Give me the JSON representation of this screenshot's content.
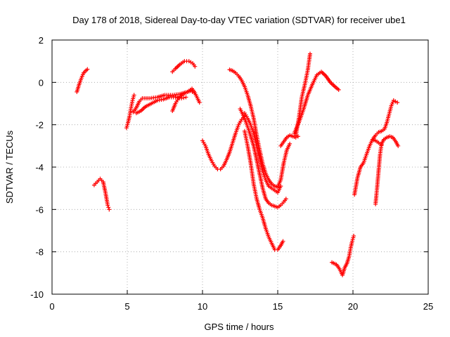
{
  "chart_data": {
    "type": "scatter",
    "title": "Day 178 of 2018, Sidereal Day-to-day VTEC variation (SDTVAR) for receiver ube1",
    "xlabel": "GPS time / hours",
    "ylabel": "SDTVAR / TECUs",
    "xlim": [
      0,
      25
    ],
    "ylim": [
      -10,
      2
    ],
    "xticks": [
      "0",
      "5",
      "10",
      "15",
      "20",
      "25"
    ],
    "yticks": [
      "-10",
      "-8",
      "-6",
      "-4",
      "-2",
      "0",
      "2"
    ],
    "grid": true,
    "marker": "+",
    "color": "#ff0000",
    "series": [
      {
        "values": [
          [
            1.65,
            -0.45
          ],
          [
            1.8,
            -0.1
          ],
          [
            1.95,
            0.2
          ],
          [
            2.1,
            0.45
          ],
          [
            2.35,
            0.62
          ]
        ]
      },
      {
        "values": [
          [
            2.8,
            -4.85
          ],
          [
            3.0,
            -4.7
          ],
          [
            3.2,
            -4.55
          ],
          [
            3.4,
            -4.7
          ],
          [
            3.55,
            -5.2
          ],
          [
            3.7,
            -5.8
          ],
          [
            3.8,
            -6.0
          ]
        ]
      },
      {
        "values": [
          [
            4.95,
            -2.15
          ],
          [
            5.05,
            -1.9
          ],
          [
            5.15,
            -1.6
          ],
          [
            5.25,
            -1.2
          ],
          [
            5.35,
            -0.85
          ],
          [
            5.45,
            -0.6
          ]
        ]
      },
      {
        "values": [
          [
            5.4,
            -1.4
          ],
          [
            5.6,
            -1.2
          ],
          [
            5.8,
            -0.9
          ],
          [
            6.0,
            -0.75
          ],
          [
            6.5,
            -0.75
          ],
          [
            7.0,
            -0.7
          ],
          [
            7.5,
            -0.6
          ],
          [
            8.0,
            -0.6
          ],
          [
            8.5,
            -0.55
          ],
          [
            9.0,
            -0.45
          ],
          [
            9.3,
            -0.3
          ],
          [
            9.5,
            -0.5
          ],
          [
            9.7,
            -0.8
          ],
          [
            9.8,
            -0.95
          ]
        ]
      },
      {
        "values": [
          [
            5.6,
            -1.45
          ],
          [
            5.9,
            -1.35
          ],
          [
            6.2,
            -1.15
          ],
          [
            6.6,
            -1.0
          ],
          [
            7.0,
            -0.85
          ],
          [
            7.4,
            -0.8
          ],
          [
            7.8,
            -0.7
          ],
          [
            8.2,
            -0.7
          ],
          [
            8.6,
            -0.75
          ],
          [
            8.9,
            -0.7
          ]
        ]
      },
      {
        "values": [
          [
            8.0,
            -1.35
          ],
          [
            8.2,
            -1.0
          ],
          [
            8.4,
            -0.75
          ],
          [
            8.7,
            -0.55
          ],
          [
            9.0,
            -0.45
          ],
          [
            9.2,
            -0.4
          ],
          [
            9.45,
            -0.5
          ]
        ]
      },
      {
        "values": [
          [
            8.0,
            0.5
          ],
          [
            8.2,
            0.65
          ],
          [
            8.5,
            0.85
          ],
          [
            8.8,
            1.0
          ],
          [
            9.1,
            1.0
          ],
          [
            9.35,
            0.9
          ],
          [
            9.5,
            0.75
          ]
        ]
      },
      {
        "values": [
          [
            10.0,
            -2.75
          ],
          [
            10.2,
            -3.0
          ],
          [
            10.4,
            -3.4
          ],
          [
            10.6,
            -3.7
          ],
          [
            10.8,
            -3.95
          ],
          [
            11.0,
            -4.1
          ],
          [
            11.2,
            -4.1
          ],
          [
            11.4,
            -3.95
          ],
          [
            11.6,
            -3.65
          ],
          [
            11.8,
            -3.3
          ],
          [
            12.0,
            -2.85
          ],
          [
            12.2,
            -2.4
          ],
          [
            12.4,
            -2.0
          ],
          [
            12.6,
            -1.75
          ],
          [
            12.8,
            -1.6
          ]
        ]
      },
      {
        "values": [
          [
            11.8,
            0.6
          ],
          [
            12.0,
            0.55
          ],
          [
            12.2,
            0.45
          ],
          [
            12.4,
            0.3
          ],
          [
            12.6,
            0.1
          ],
          [
            12.8,
            -0.2
          ],
          [
            13.0,
            -0.6
          ],
          [
            13.2,
            -1.1
          ],
          [
            13.4,
            -1.7
          ],
          [
            13.6,
            -2.5
          ],
          [
            13.8,
            -3.2
          ],
          [
            14.0,
            -3.85
          ],
          [
            14.2,
            -4.3
          ],
          [
            14.4,
            -4.6
          ],
          [
            14.6,
            -4.8
          ],
          [
            14.8,
            -4.9
          ],
          [
            15.0,
            -4.95
          ],
          [
            15.2,
            -4.6
          ],
          [
            15.4,
            -3.8
          ],
          [
            15.6,
            -3.2
          ],
          [
            15.8,
            -2.9
          ]
        ]
      },
      {
        "values": [
          [
            12.8,
            -1.45
          ],
          [
            13.0,
            -1.7
          ],
          [
            13.2,
            -2.0
          ],
          [
            13.4,
            -2.4
          ],
          [
            13.6,
            -3.0
          ],
          [
            13.8,
            -3.6
          ],
          [
            14.0,
            -4.2
          ],
          [
            14.2,
            -4.6
          ],
          [
            14.4,
            -4.9
          ],
          [
            14.6,
            -5.0
          ],
          [
            14.8,
            -5.1
          ],
          [
            15.0,
            -5.2
          ],
          [
            15.2,
            -4.9
          ]
        ]
      },
      {
        "values": [
          [
            12.5,
            -1.25
          ],
          [
            12.8,
            -1.7
          ],
          [
            13.1,
            -2.3
          ],
          [
            13.4,
            -3.0
          ],
          [
            13.7,
            -4.0
          ],
          [
            14.0,
            -5.0
          ],
          [
            14.2,
            -5.5
          ],
          [
            14.4,
            -5.7
          ],
          [
            14.6,
            -5.8
          ],
          [
            14.8,
            -5.85
          ],
          [
            15.0,
            -5.9
          ],
          [
            15.2,
            -5.8
          ],
          [
            15.4,
            -5.65
          ],
          [
            15.55,
            -5.5
          ]
        ]
      },
      {
        "values": [
          [
            12.8,
            -2.3
          ],
          [
            13.0,
            -3.0
          ],
          [
            13.2,
            -3.8
          ],
          [
            13.4,
            -4.8
          ],
          [
            13.6,
            -5.5
          ],
          [
            13.8,
            -6.0
          ],
          [
            14.0,
            -6.4
          ],
          [
            14.2,
            -6.9
          ],
          [
            14.4,
            -7.3
          ],
          [
            14.6,
            -7.6
          ],
          [
            14.8,
            -7.9
          ],
          [
            15.0,
            -7.9
          ],
          [
            15.2,
            -7.7
          ],
          [
            15.35,
            -7.5
          ]
        ]
      },
      {
        "values": [
          [
            15.2,
            -3.0
          ],
          [
            15.4,
            -2.8
          ],
          [
            15.6,
            -2.6
          ],
          [
            15.8,
            -2.5
          ],
          [
            16.0,
            -2.55
          ],
          [
            16.2,
            -2.6
          ],
          [
            16.35,
            -2.55
          ]
        ]
      },
      {
        "values": [
          [
            16.2,
            -2.5
          ],
          [
            16.4,
            -1.7
          ],
          [
            16.6,
            -0.7
          ],
          [
            16.8,
            -0.1
          ],
          [
            17.0,
            0.6
          ],
          [
            17.15,
            1.35
          ]
        ]
      },
      {
        "values": [
          [
            16.1,
            -2.4
          ],
          [
            16.4,
            -1.9
          ],
          [
            16.7,
            -1.3
          ],
          [
            17.0,
            -0.6
          ],
          [
            17.3,
            -0.1
          ],
          [
            17.6,
            0.35
          ],
          [
            17.9,
            0.5
          ],
          [
            18.2,
            0.3
          ],
          [
            18.5,
            0.0
          ],
          [
            18.8,
            -0.2
          ],
          [
            19.05,
            -0.35
          ]
        ]
      },
      {
        "values": [
          [
            18.6,
            -8.5
          ],
          [
            18.9,
            -8.6
          ],
          [
            19.1,
            -8.8
          ],
          [
            19.3,
            -9.1
          ],
          [
            19.45,
            -8.75
          ],
          [
            19.6,
            -8.55
          ],
          [
            19.75,
            -8.2
          ],
          [
            19.85,
            -7.8
          ],
          [
            19.95,
            -7.5
          ],
          [
            20.05,
            -7.25
          ]
        ]
      },
      {
        "values": [
          [
            20.1,
            -5.3
          ],
          [
            20.3,
            -4.5
          ],
          [
            20.5,
            -4.0
          ],
          [
            20.7,
            -3.8
          ],
          [
            20.9,
            -3.4
          ],
          [
            21.1,
            -3.0
          ],
          [
            21.3,
            -2.7
          ],
          [
            21.5,
            -2.5
          ],
          [
            21.7,
            -2.35
          ],
          [
            21.9,
            -2.3
          ],
          [
            22.1,
            -2.2
          ],
          [
            22.25,
            -1.9
          ],
          [
            22.4,
            -1.5
          ],
          [
            22.55,
            -1.1
          ],
          [
            22.7,
            -0.85
          ],
          [
            22.95,
            -0.95
          ]
        ]
      },
      {
        "values": [
          [
            21.5,
            -5.75
          ],
          [
            21.6,
            -5.0
          ],
          [
            21.7,
            -4.2
          ],
          [
            21.8,
            -3.4
          ],
          [
            21.9,
            -2.9
          ],
          [
            22.05,
            -2.7
          ],
          [
            22.25,
            -2.6
          ],
          [
            22.45,
            -2.55
          ],
          [
            22.65,
            -2.6
          ],
          [
            22.85,
            -2.8
          ],
          [
            23.0,
            -3.0
          ]
        ]
      },
      {
        "values": [
          [
            21.3,
            -2.7
          ],
          [
            21.5,
            -2.75
          ],
          [
            21.7,
            -2.85
          ],
          [
            21.9,
            -2.95
          ]
        ]
      }
    ]
  }
}
